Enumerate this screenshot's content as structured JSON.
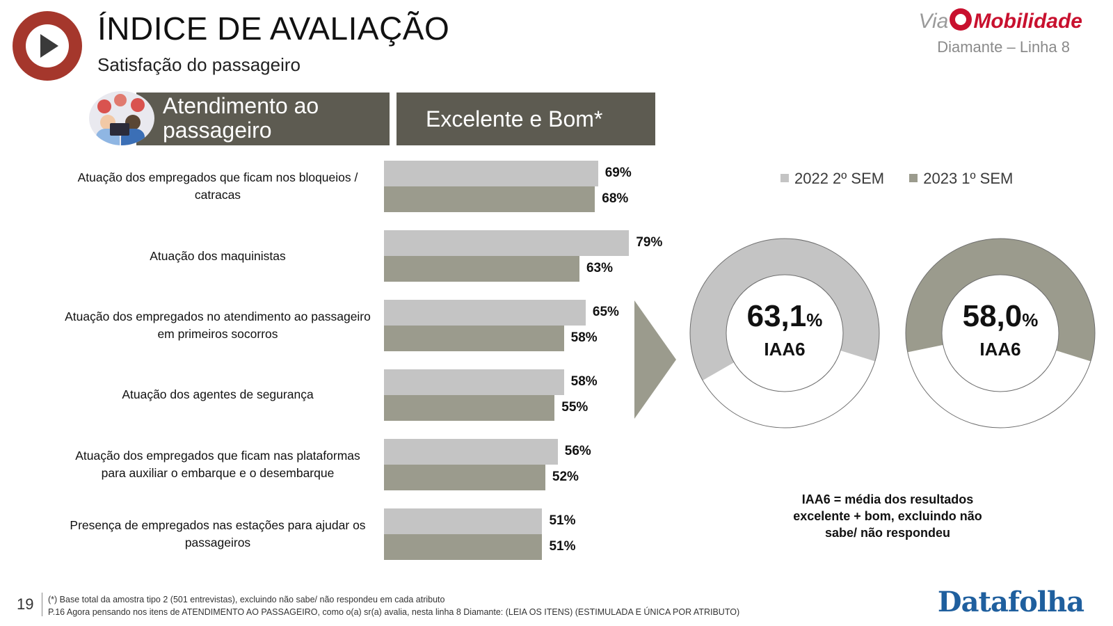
{
  "header": {
    "title": "ÍNDICE DE AVALIAÇÃO",
    "subtitle": "Satisfação do passageiro",
    "brand_via": "Via",
    "brand_name": "Mobilidade",
    "line": "Diamante – Linha 8"
  },
  "section": {
    "left_header": "Atendimento ao passageiro",
    "right_header": "Excelente e Bom*"
  },
  "chart_data": [
    {
      "type": "bar",
      "orientation": "horizontal",
      "categories": [
        "Atuação dos empregados que ficam nos bloqueios / catracas",
        "Atuação dos maquinistas",
        "Atuação dos empregados no atendimento ao passageiro em primeiros socorros",
        "Atuação dos agentes de segurança",
        "Atuação dos empregados que ficam nas plataformas para auxiliar o embarque e o desembarque",
        "Presença de empregados nas estações para ajudar os passageiros"
      ],
      "series": [
        {
          "name": "2022 2º SEM",
          "values": [
            69,
            79,
            65,
            58,
            56,
            51
          ],
          "labels": [
            "69%",
            "79%",
            "65%",
            "58%",
            "56%",
            "51%"
          ],
          "color": "#c4c4c4"
        },
        {
          "name": "2023 1º SEM",
          "values": [
            68,
            63,
            58,
            55,
            52,
            51
          ],
          "labels": [
            "68%",
            "63%",
            "58%",
            "55%",
            "52%",
            "51%"
          ],
          "color": "#9b9b8d"
        }
      ],
      "xlim": [
        0,
        100
      ]
    },
    {
      "type": "pie",
      "variant": "donut",
      "series": "2022 2º SEM",
      "value": 63.1,
      "value_text": "63,1",
      "unit": "%",
      "name": "IAA6",
      "fill_color": "#c4c4c4"
    },
    {
      "type": "pie",
      "variant": "donut",
      "series": "2023 1º SEM",
      "value": 58.0,
      "value_text": "58,0",
      "unit": "%",
      "name": "IAA6",
      "fill_color": "#9b9b8d"
    }
  ],
  "legend": [
    "2022 2º SEM",
    "2023 1º SEM"
  ],
  "note": "IAA6 = média dos resultados excelente + bom, excluindo não sabe/ não respondeu",
  "footer": {
    "page": "19",
    "line1": "(*) Base total da amostra tipo 2 (501 entrevistas), excluindo não sabe/ não respondeu em cada atributo",
    "line2": "P.16 Agora pensando nos itens de ATENDIMENTO AO PASSAGEIRO, como o(a) sr(a) avalia, nesta linha 8 Diamante: (LEIA OS ITENS) (ESTIMULADA E ÚNICA POR ATRIBUTO)",
    "brand": "Datafolha"
  },
  "colors": {
    "header_bg": "#5d5b51",
    "logo_red": "#a5372c",
    "brand_red": "#c8102e",
    "datafolha_blue": "#1f5f9e"
  }
}
